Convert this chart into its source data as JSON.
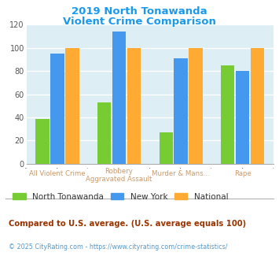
{
  "title_line1": "2019 North Tonawanda",
  "title_line2": "Violent Crime Comparison",
  "title_color": "#1a9aee",
  "cat_line1": [
    "All Violent Crime",
    "Robbery",
    "Murder & Mans...",
    "Rape"
  ],
  "cat_line2": [
    "",
    "Aggravated Assault",
    "",
    ""
  ],
  "series": {
    "North Tonawanda": [
      39,
      53,
      27,
      85
    ],
    "New York": [
      95,
      114,
      91,
      80
    ],
    "National": [
      100,
      100,
      100,
      100
    ]
  },
  "colors": {
    "North Tonawanda": "#77cc33",
    "New York": "#4499ee",
    "National": "#ffaa33"
  },
  "ylim": [
    0,
    120
  ],
  "yticks": [
    0,
    20,
    40,
    60,
    80,
    100,
    120
  ],
  "bg_color": "#ddeef5",
  "grid_color": "#ffffff",
  "legend_labels": [
    "North Tonawanda",
    "New York",
    "National"
  ],
  "footnote1": "Compared to U.S. average. (U.S. average equals 100)",
  "footnote2": "© 2025 CityRating.com - https://www.cityrating.com/crime-statistics/",
  "footnote1_color": "#993300",
  "footnote2_color": "#5599cc",
  "xlabel_color": "#cc9966"
}
